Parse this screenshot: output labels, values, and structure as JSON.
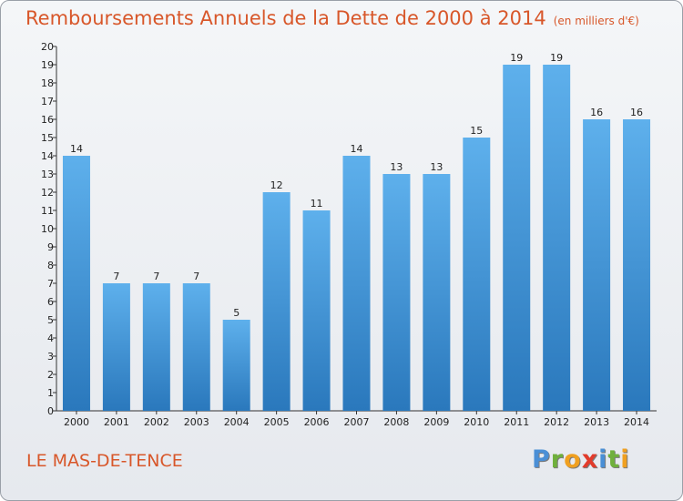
{
  "header": {
    "title": "Remboursements Annuels de la Dette de 2000 à 2014",
    "subtitle": "(en milliers d'€)"
  },
  "footer": {
    "commune": "LE MAS-DE-TENCE",
    "logo_letters": [
      {
        "ch": "P",
        "color": "#4a8fd6"
      },
      {
        "ch": "r",
        "color": "#6fb03c"
      },
      {
        "ch": "o",
        "color": "#f0a020"
      },
      {
        "ch": "x",
        "color": "#e23b2b"
      },
      {
        "ch": "i",
        "color": "#4a8fd6"
      },
      {
        "ch": "t",
        "color": "#6fb03c"
      },
      {
        "ch": "i",
        "color": "#f0a020"
      }
    ]
  },
  "chart_data": {
    "type": "bar",
    "title": "Remboursements Annuels de la Dette de 2000 à 2014",
    "subtitle": "(en milliers d'€)",
    "categories": [
      "2000",
      "2001",
      "2002",
      "2003",
      "2004",
      "2005",
      "2006",
      "2007",
      "2008",
      "2009",
      "2010",
      "2011",
      "2012",
      "2013",
      "2014"
    ],
    "values": [
      14,
      7,
      7,
      7,
      5,
      12,
      11,
      14,
      13,
      13,
      15,
      19,
      19,
      16,
      16
    ],
    "ylim": [
      0,
      20
    ],
    "yticks": [
      0,
      1,
      2,
      3,
      4,
      5,
      6,
      7,
      8,
      9,
      10,
      11,
      12,
      13,
      14,
      15,
      16,
      17,
      18,
      19,
      20
    ],
    "grid": false,
    "bar_color_top": "#5eb0ec",
    "bar_color_bottom": "#2a78bc"
  }
}
